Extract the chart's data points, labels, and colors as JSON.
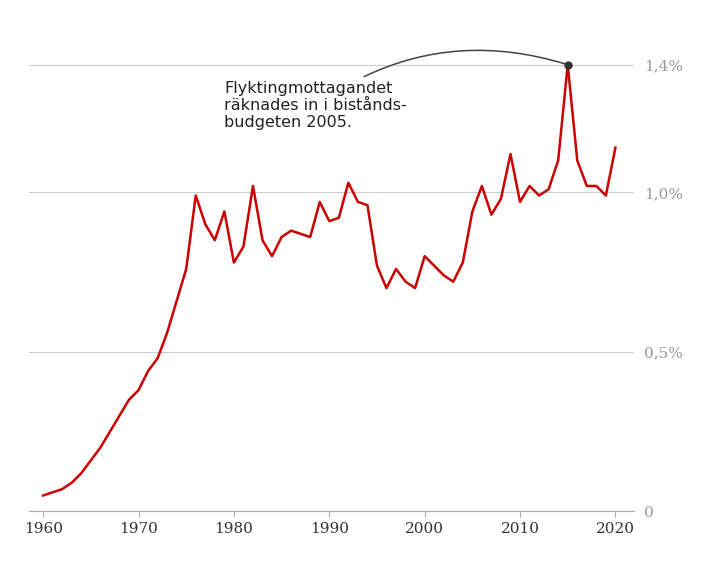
{
  "years": [
    1960,
    1961,
    1962,
    1963,
    1964,
    1965,
    1966,
    1967,
    1968,
    1969,
    1970,
    1971,
    1972,
    1973,
    1974,
    1975,
    1976,
    1977,
    1978,
    1979,
    1980,
    1981,
    1982,
    1983,
    1984,
    1985,
    1986,
    1987,
    1988,
    1989,
    1990,
    1991,
    1992,
    1993,
    1994,
    1995,
    1996,
    1997,
    1998,
    1999,
    2000,
    2001,
    2002,
    2003,
    2004,
    2005,
    2006,
    2007,
    2008,
    2009,
    2010,
    2011,
    2012,
    2013,
    2014,
    2015,
    2016,
    2017,
    2018,
    2019,
    2020
  ],
  "values": [
    0.05,
    0.06,
    0.07,
    0.09,
    0.12,
    0.16,
    0.2,
    0.25,
    0.3,
    0.35,
    0.38,
    0.44,
    0.48,
    0.56,
    0.66,
    0.76,
    0.99,
    0.9,
    0.85,
    0.94,
    0.78,
    0.83,
    1.02,
    0.85,
    0.8,
    0.86,
    0.88,
    0.87,
    0.86,
    0.97,
    0.91,
    0.92,
    1.03,
    0.97,
    0.96,
    0.77,
    0.7,
    0.76,
    0.72,
    0.7,
    0.8,
    0.77,
    0.74,
    0.72,
    0.78,
    0.94,
    1.02,
    0.93,
    0.98,
    1.12,
    0.97,
    1.02,
    0.99,
    1.01,
    1.1,
    1.4,
    1.1,
    1.02,
    1.02,
    0.99,
    1.14
  ],
  "line_color": "#cc0000",
  "line_width": 1.8,
  "background_color": "#ffffff",
  "grid_color": "#cccccc",
  "annotation_text": "Flyktingmottagandet\nräknades in i bistånds-\nbudgeten 2005.",
  "peak_year": 2015,
  "peak_value": 1.4,
  "ytick_labels": [
    "0",
    "0,5%",
    "1,0%",
    "1,4%"
  ],
  "ytick_values": [
    0,
    0.5,
    1.0,
    1.4
  ],
  "xtick_values": [
    1960,
    1970,
    1980,
    1990,
    2000,
    2010,
    2020
  ],
  "xtick_labels": [
    "1960",
    "1970",
    "1980",
    "1990",
    "2000",
    "2010",
    "2020"
  ],
  "ylim": [
    0,
    1.55
  ],
  "xlim": [
    1958.5,
    2022
  ],
  "tick_color": "#999999",
  "tick_fontsize": 11,
  "xtick_fontsize": 11
}
